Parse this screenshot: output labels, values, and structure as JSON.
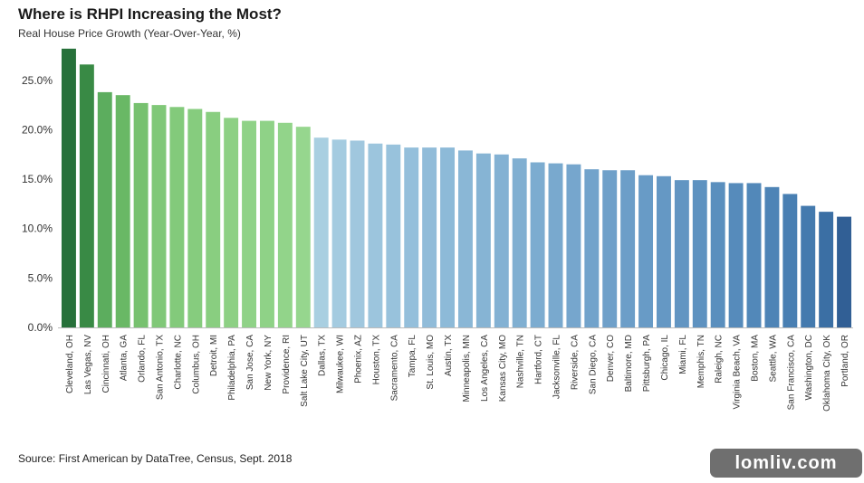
{
  "header": {
    "title": "Where is RHPI Increasing the Most?",
    "subtitle": "Real House Price Growth (Year-Over-Year, %)"
  },
  "footer": {
    "source": "Source: First American by DataTree, Census, Sept. 2018",
    "watermark": "lomliv.com"
  },
  "chart_data": {
    "type": "bar",
    "title": "Where is RHPI Increasing the Most?",
    "subtitle": "Real House Price Growth (Year-Over-Year, %)",
    "xlabel": "",
    "ylabel": "",
    "ylim": [
      0,
      28
    ],
    "yticks": [
      0,
      5,
      10,
      15,
      20,
      25
    ],
    "ytick_labels": [
      "0.0%",
      "5.0%",
      "10.0%",
      "15.0%",
      "20.0%",
      "25.0%"
    ],
    "grid": false,
    "legend": "none",
    "categories": [
      "Cleveland, OH",
      "Las Vegas, NV",
      "Cincinnati, OH",
      "Atlanta, GA",
      "Orlando, FL",
      "San Antonio, TX",
      "Charlotte, NC",
      "Columbus, OH",
      "Detroit, MI",
      "Philadelphia, PA",
      "San Jose, CA",
      "New York, NY",
      "Providence, RI",
      "Salt Lake City, UT",
      "Dallas, TX",
      "Milwaukee, WI",
      "Phoenix, AZ",
      "Houston, TX",
      "Sacramento, CA",
      "Tampa, FL",
      "St. Louis, MO",
      "Austin, TX",
      "Minneapolis, MN",
      "Los Angeles, CA",
      "Kansas City, MO",
      "Nashville, TN",
      "Hartford, CT",
      "Jacksonville, FL",
      "Riverside, CA",
      "San Diego, CA",
      "Denver, CO",
      "Baltimore, MD",
      "Pittsburgh, PA",
      "Chicago, IL",
      "Miami, FL",
      "Memphis, TN",
      "Raleigh, NC",
      "Virginia Beach, VA",
      "Boston, MA",
      "Seattle, WA",
      "San Francisco, CA",
      "Washington, DC",
      "Oklahoma City, OK",
      "Portland, OR"
    ],
    "values": [
      28.2,
      26.6,
      23.8,
      23.5,
      22.7,
      22.5,
      22.3,
      22.1,
      21.8,
      21.2,
      20.9,
      20.9,
      20.7,
      20.3,
      19.2,
      19.0,
      18.9,
      18.6,
      18.5,
      18.2,
      18.2,
      18.2,
      17.9,
      17.6,
      17.5,
      17.1,
      16.7,
      16.6,
      16.5,
      16.0,
      15.9,
      15.9,
      15.4,
      15.3,
      14.9,
      14.9,
      14.7,
      14.6,
      14.6,
      14.2,
      13.5,
      12.3,
      11.7,
      11.2
    ],
    "colors": [
      "#27713a",
      "#398a45",
      "#5cad5e",
      "#69b865",
      "#77c16f",
      "#80c878",
      "#83ca7b",
      "#86cc7e",
      "#89ce80",
      "#8dd084",
      "#8fd287",
      "#8fd287",
      "#92d48a",
      "#96d68e",
      "#a9cfe1",
      "#a4cbe0",
      "#a0c7de",
      "#9cc5dd",
      "#98c2dc",
      "#94bfdb",
      "#91bcd9",
      "#8dbad8",
      "#8ab7d6",
      "#86b4d4",
      "#83b1d3",
      "#80afd1",
      "#7cacd0",
      "#79a9ce",
      "#76a6cd",
      "#72a3cb",
      "#6fa0c9",
      "#6c9ec8",
      "#689bc6",
      "#6598c4",
      "#6295c2",
      "#5e92c0",
      "#5a8fbe",
      "#568bbb",
      "#5288b9",
      "#4e84b6",
      "#497fb2",
      "#447aae",
      "#3b6fa4",
      "#315f95"
    ]
  }
}
